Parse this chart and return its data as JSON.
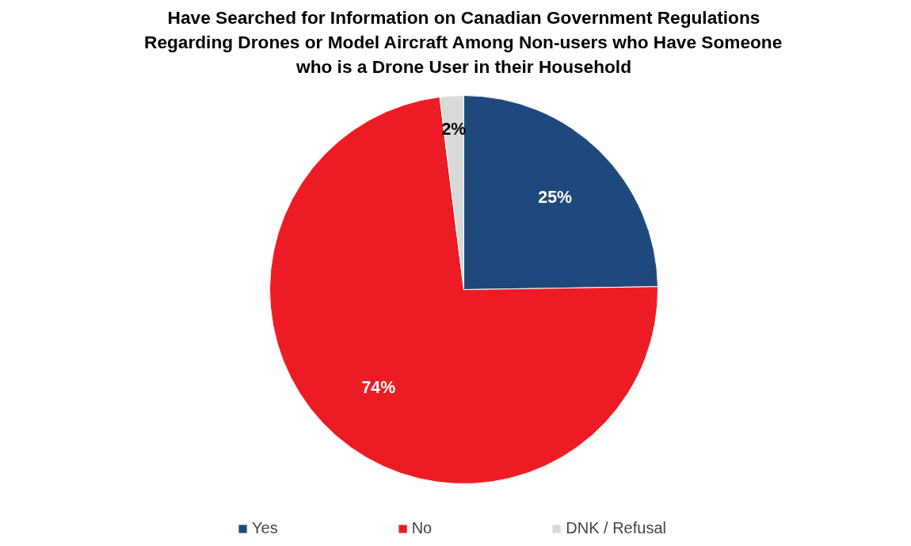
{
  "chart_data": {
    "type": "pie",
    "title": "Have Searched for Information on Canadian Government Regulations\nRegarding Drones or Model Aircraft Among Non-users who Have Someone\nwho is a Drone User in their Household",
    "categories": [
      "Yes",
      "No",
      "DNK / Refusal"
    ],
    "values": [
      25,
      74,
      2
    ],
    "colors": [
      "#1f497d",
      "#ed1c24",
      "#d9d9d9"
    ],
    "value_labels": [
      "25%",
      "74%",
      "2%"
    ],
    "data_labels": true,
    "legend": "bottom"
  }
}
